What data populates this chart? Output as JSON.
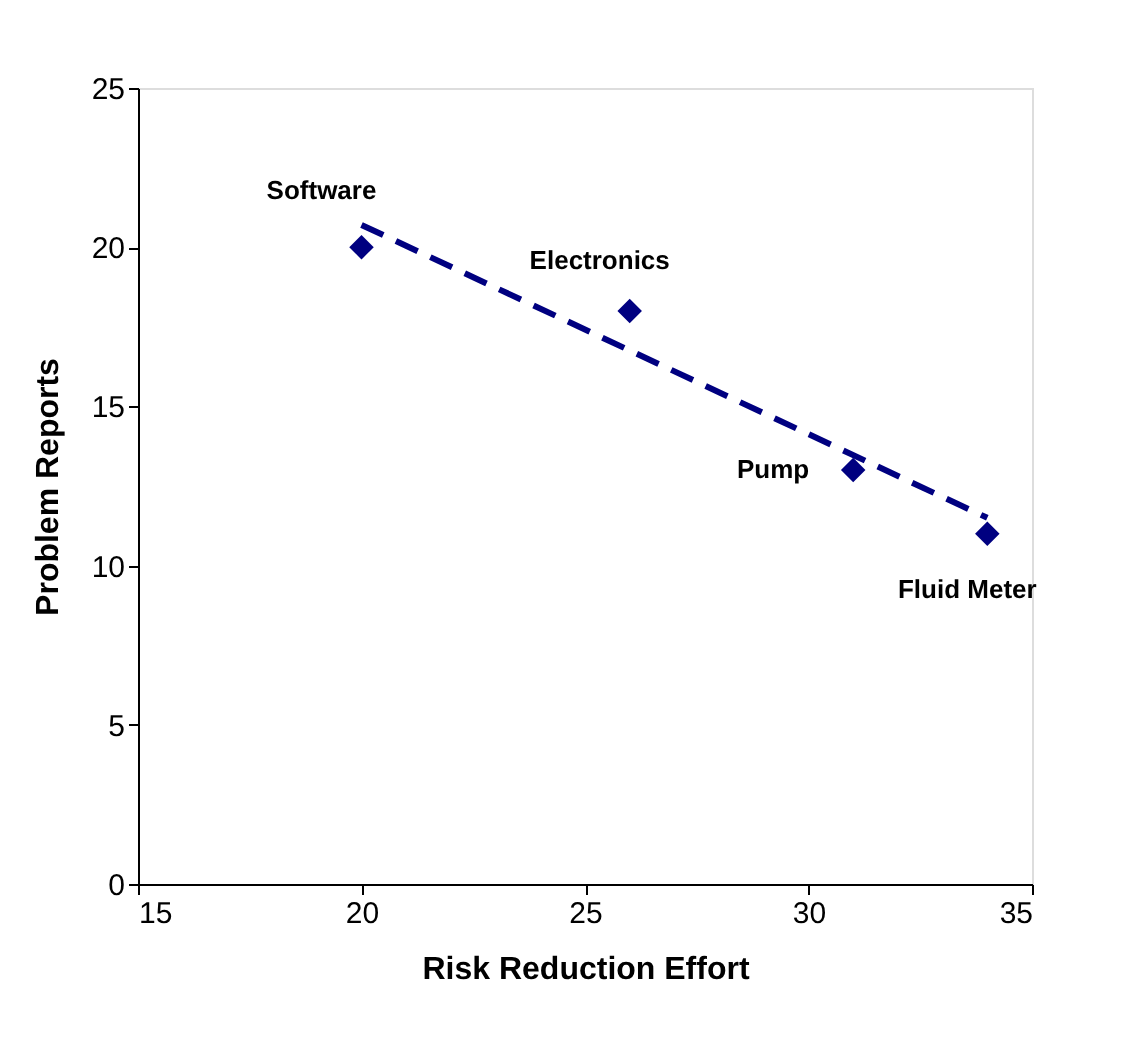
{
  "chart_data": {
    "type": "scatter",
    "xlabel": "Risk Reduction Effort",
    "ylabel": "Problem Reports",
    "grid": false,
    "xlim": [
      15,
      35
    ],
    "xticks": [
      15,
      20,
      25,
      30,
      35
    ],
    "ylim": [
      0,
      25
    ],
    "yticks": [
      0,
      5,
      10,
      15,
      20,
      25
    ],
    "series": [
      {
        "color": "#000080",
        "marker": "diamond",
        "x": [
          20,
          26,
          31,
          34
        ],
        "values": [
          20,
          18,
          13,
          11
        ]
      },
      {
        "type": "line",
        "color": "#000080",
        "line_style": "dashed",
        "marker": "none",
        "x": [
          20,
          34
        ],
        "values": [
          20.7,
          11.5
        ]
      }
    ],
    "annotations": [
      {
        "text": "Software",
        "x": 20,
        "y": 20
      },
      {
        "text": "Electronics",
        "x": 26,
        "y": 18
      },
      {
        "text": "Pump",
        "x": 31,
        "y": 13
      },
      {
        "text": "Fluid Meter",
        "x": 34,
        "y": 11
      }
    ]
  }
}
